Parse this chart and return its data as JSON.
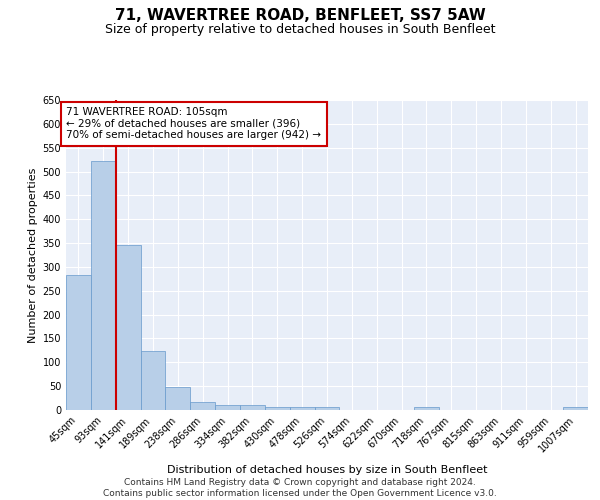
{
  "title": "71, WAVERTREE ROAD, BENFLEET, SS7 5AW",
  "subtitle": "Size of property relative to detached houses in South Benfleet",
  "xlabel": "Distribution of detached houses by size in South Benfleet",
  "ylabel": "Number of detached properties",
  "categories": [
    "45sqm",
    "93sqm",
    "141sqm",
    "189sqm",
    "238sqm",
    "286sqm",
    "334sqm",
    "382sqm",
    "430sqm",
    "478sqm",
    "526sqm",
    "574sqm",
    "622sqm",
    "670sqm",
    "718sqm",
    "767sqm",
    "815sqm",
    "863sqm",
    "911sqm",
    "959sqm",
    "1007sqm"
  ],
  "values": [
    283,
    522,
    347,
    123,
    49,
    17,
    11,
    11,
    6,
    7,
    7,
    0,
    0,
    0,
    6,
    0,
    0,
    0,
    0,
    0,
    6
  ],
  "bar_color": "#b8cfe8",
  "bar_edge_color": "#6699cc",
  "highlight_line_color": "#cc0000",
  "vline_x": 1.5,
  "annotation_text": "71 WAVERTREE ROAD: 105sqm\n← 29% of detached houses are smaller (396)\n70% of semi-detached houses are larger (942) →",
  "annotation_box_color": "#ffffff",
  "annotation_box_edge_color": "#cc0000",
  "ylim": [
    0,
    650
  ],
  "yticks": [
    0,
    50,
    100,
    150,
    200,
    250,
    300,
    350,
    400,
    450,
    500,
    550,
    600,
    650
  ],
  "background_color": "#e8eef8",
  "footer_text": "Contains HM Land Registry data © Crown copyright and database right 2024.\nContains public sector information licensed under the Open Government Licence v3.0.",
  "title_fontsize": 11,
  "subtitle_fontsize": 9,
  "xlabel_fontsize": 8,
  "ylabel_fontsize": 8,
  "tick_fontsize": 7,
  "annotation_fontsize": 7.5,
  "footer_fontsize": 6.5
}
